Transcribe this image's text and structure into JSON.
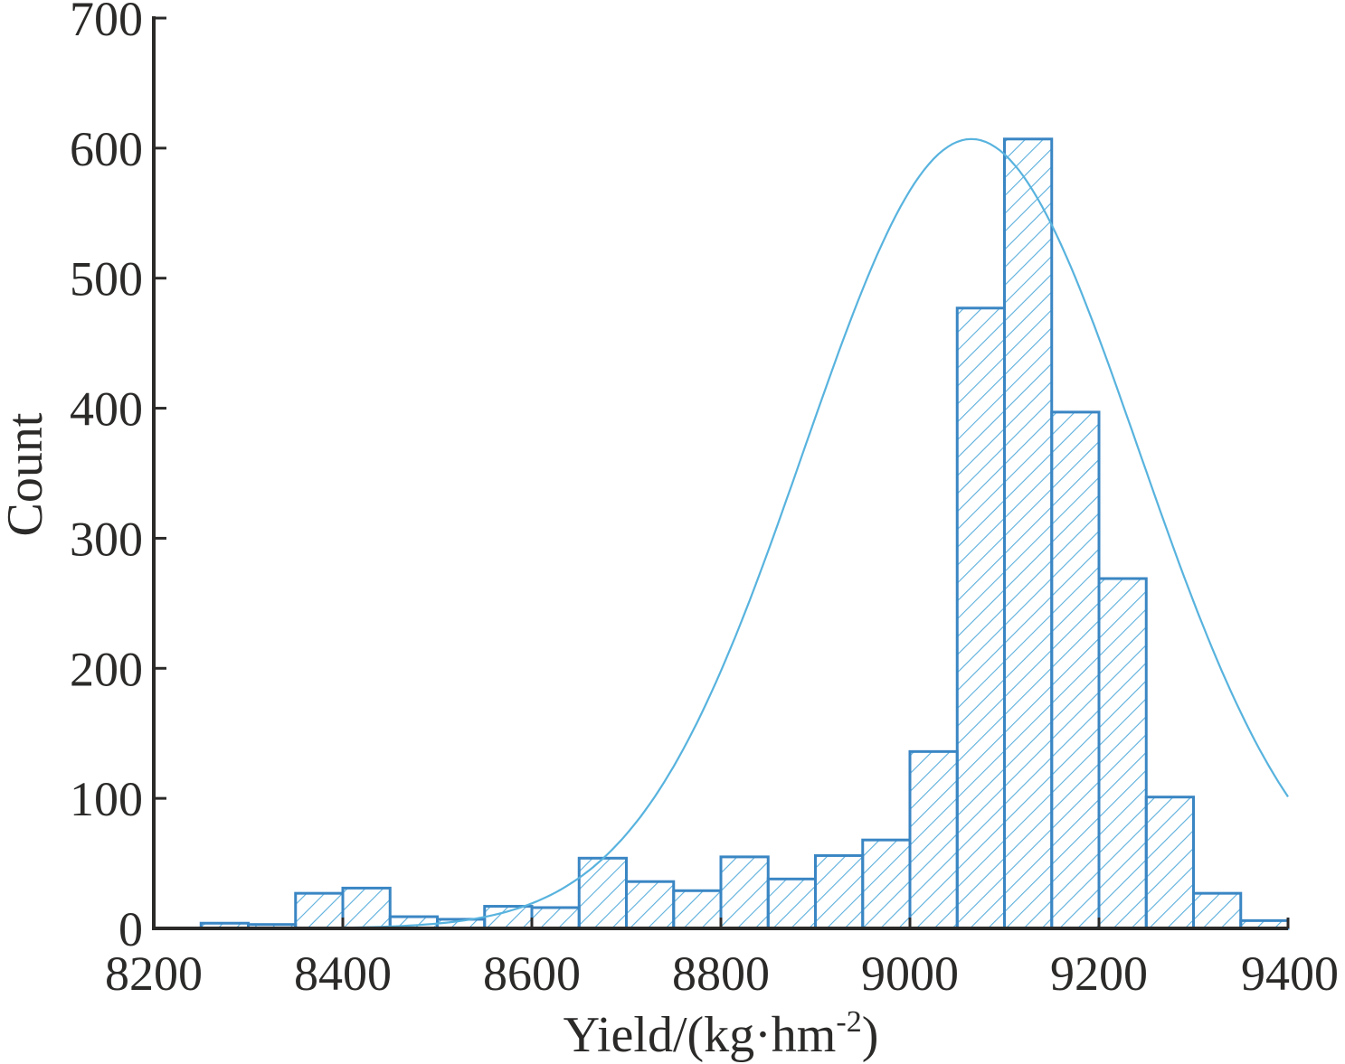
{
  "chart_data": {
    "type": "bar",
    "subtype": "histogram",
    "xlabel": "Yield/(kg·hm",
    "xlabel_sup": "-2",
    "xlabel_close": ")",
    "ylabel": "Count",
    "xlim": [
      8200,
      9400
    ],
    "ylim": [
      0,
      700
    ],
    "xticks": [
      "8200",
      "8400",
      "8600",
      "8800",
      "9000",
      "9200",
      "9400"
    ],
    "yticks": [
      "0",
      "100",
      "200",
      "300",
      "400",
      "500",
      "600",
      "700"
    ],
    "bin_width": 50,
    "bins": [
      {
        "start": 8250,
        "count": 4
      },
      {
        "start": 8300,
        "count": 3
      },
      {
        "start": 8350,
        "count": 27
      },
      {
        "start": 8400,
        "count": 31
      },
      {
        "start": 8450,
        "count": 9
      },
      {
        "start": 8500,
        "count": 7
      },
      {
        "start": 8550,
        "count": 17
      },
      {
        "start": 8600,
        "count": 16
      },
      {
        "start": 8650,
        "count": 54
      },
      {
        "start": 8700,
        "count": 36
      },
      {
        "start": 8750,
        "count": 29
      },
      {
        "start": 8800,
        "count": 55
      },
      {
        "start": 8850,
        "count": 38
      },
      {
        "start": 8900,
        "count": 56
      },
      {
        "start": 8950,
        "count": 68
      },
      {
        "start": 9000,
        "count": 136
      },
      {
        "start": 9050,
        "count": 477
      },
      {
        "start": 9100,
        "count": 607
      },
      {
        "start": 9150,
        "count": 397
      },
      {
        "start": 9200,
        "count": 269
      },
      {
        "start": 9250,
        "count": 101
      },
      {
        "start": 9300,
        "count": 27
      },
      {
        "start": 9350,
        "count": 6
      }
    ],
    "fit_curve": {
      "type": "normal",
      "mean": 9065,
      "sd": 177,
      "peak": 607
    },
    "colors": {
      "bar_edge": "#3a86c4",
      "hatch": "#5aaedc",
      "curve": "#58b3de",
      "axis": "#2b2a29"
    },
    "grid": false,
    "legend": "none"
  }
}
